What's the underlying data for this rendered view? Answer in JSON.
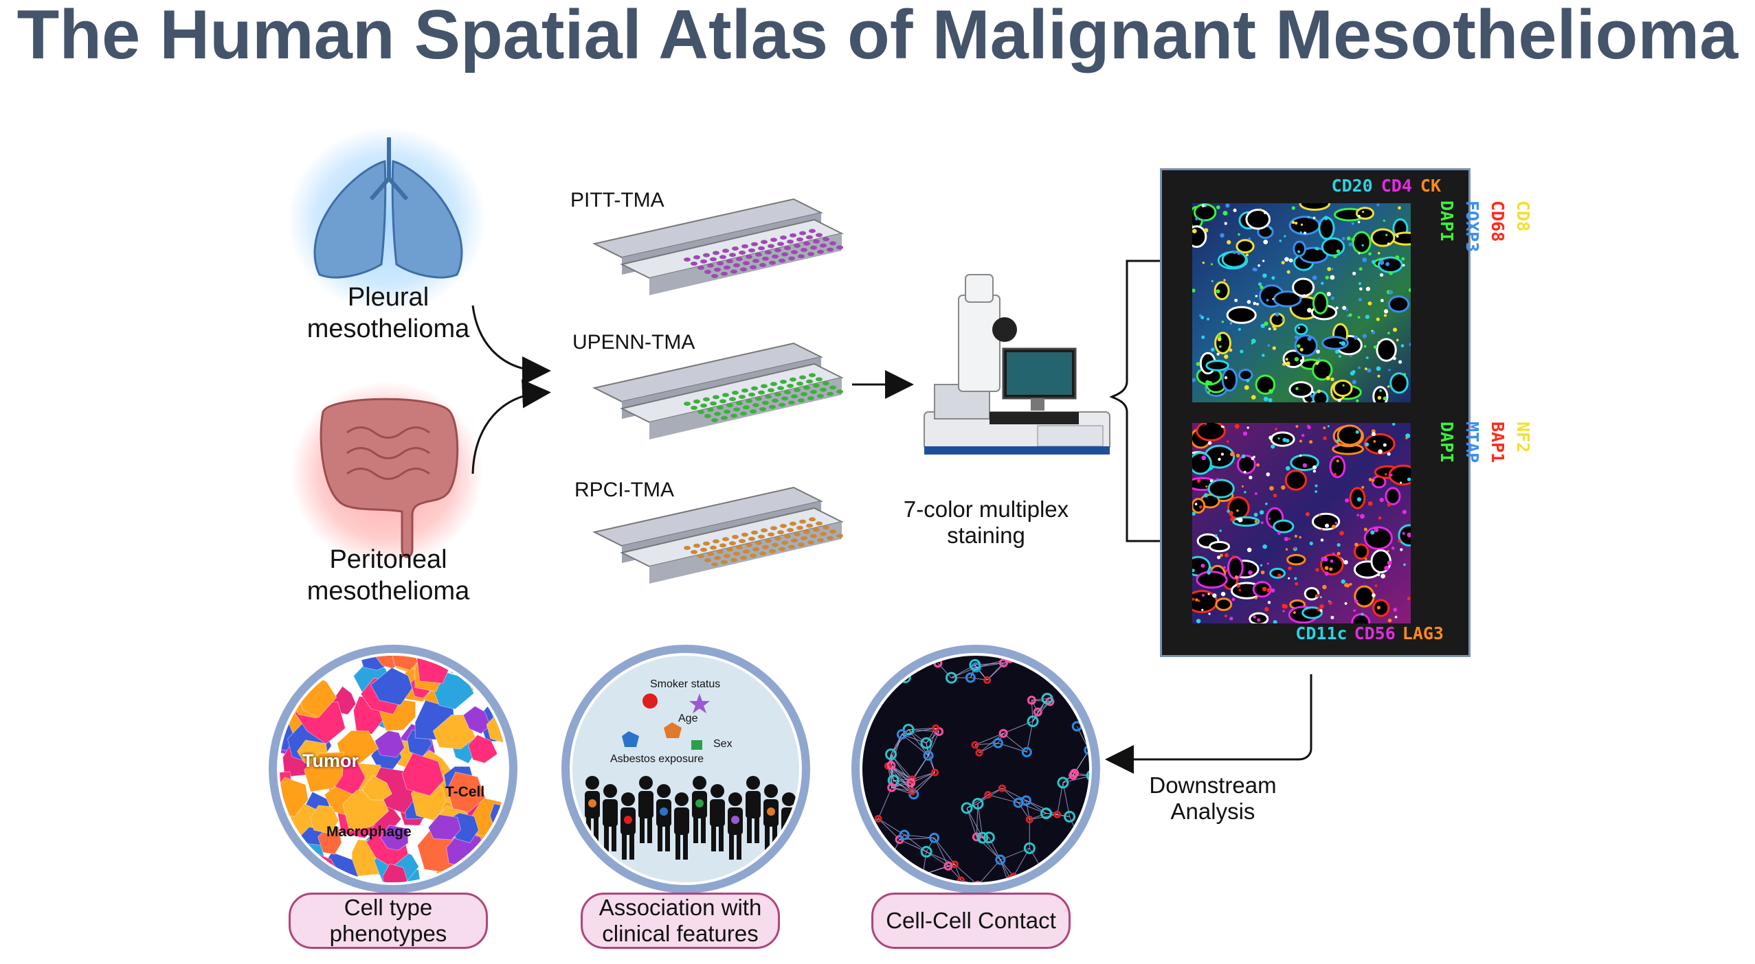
{
  "title": "The Human Spatial Atlas of Malignant Mesothelioma",
  "organs": {
    "pleural": "Pleural\nmesothelioma",
    "peritoneal": "Peritoneal\nmesothelioma"
  },
  "tmas": [
    "PITT-TMA",
    "UPENN-TMA",
    "RPCI-TMA"
  ],
  "staining_label": "7-color multiplex\nstaining",
  "panel1_markers": {
    "top": [
      {
        "text": "CD20",
        "color": "#28d4e6"
      },
      {
        "text": "CD4",
        "color": "#e629e6"
      },
      {
        "text": "CK",
        "color": "#ff8a1e"
      }
    ],
    "side": [
      {
        "text": "CD8",
        "color": "#f2e030"
      },
      {
        "text": "CD68",
        "color": "#ff2a1a"
      },
      {
        "text": "FOXP3",
        "color": "#3a8ff0"
      },
      {
        "text": "DAPI",
        "color": "#3ef03e"
      }
    ]
  },
  "panel2_markers": {
    "side": [
      {
        "text": "NF2",
        "color": "#f2e030"
      },
      {
        "text": "BAP1",
        "color": "#ff2a1a"
      },
      {
        "text": "MTAP",
        "color": "#3a8ff0"
      },
      {
        "text": "DAPI",
        "color": "#3ef03e"
      }
    ],
    "bottom": [
      {
        "text": "CD11c",
        "color": "#28d4e6"
      },
      {
        "text": "CD56",
        "color": "#e629e6"
      },
      {
        "text": "LAG3",
        "color": "#ff8a1e"
      }
    ]
  },
  "downstream_label": "Downstream\nAnalysis",
  "circle1_labels": {
    "tumor": "Tumor",
    "tcell": "T-Cell",
    "macrophage": "Macrophage"
  },
  "circle2_labels": {
    "smoker": "Smoker status",
    "age": "Age",
    "sex": "Sex",
    "asbestos": "Asbestos exposure"
  },
  "pills": [
    "Cell type\nphenotypes",
    "Association with\nclinical features",
    "Cell-Cell Contact"
  ],
  "colors": {
    "title": "#44546a",
    "pill_fill": "#f6dced",
    "pill_border": "#b0457a",
    "ring": "#8fa6cf"
  }
}
